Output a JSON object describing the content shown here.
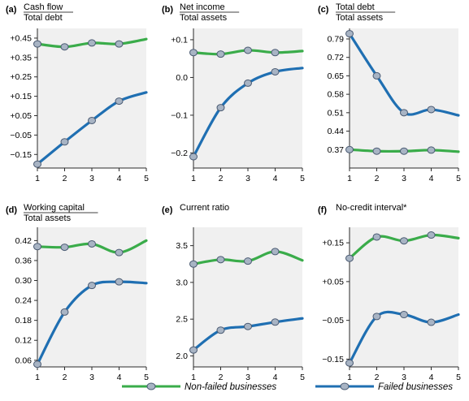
{
  "colors": {
    "non_failed": "#3aac4a",
    "failed": "#1f6fb2",
    "marker_fill": "#a8b4c4",
    "marker_stroke": "#4a5a72",
    "frame": "#2a2a2a",
    "plot_bg": "#f0f0f0"
  },
  "legend": {
    "non_failed_label": "Non-failed businesses",
    "failed_label": "Failed businesses"
  },
  "chart_data": [
    {
      "type": "line",
      "panel": "(a)",
      "title_top": "Cash flow",
      "title_bottom": "Total debt",
      "x": [
        1,
        2,
        3,
        4,
        5
      ],
      "ylim": [
        -0.22,
        0.5
      ],
      "yticks": [
        0.45,
        0.35,
        0.25,
        0.15,
        0.05,
        -0.05,
        -0.15
      ],
      "ytick_labels": [
        "+0.45",
        "+0.35",
        "+0.25",
        "+0.15",
        "+0.05",
        "−0.05",
        "−0.15"
      ],
      "series": [
        {
          "name": "Non-failed businesses",
          "key": "non_failed",
          "values": [
            0.42,
            0.405,
            0.425,
            0.42,
            0.445
          ]
        },
        {
          "name": "Failed businesses",
          "key": "failed",
          "values": [
            -0.2,
            -0.085,
            0.025,
            0.125,
            0.17
          ]
        }
      ]
    },
    {
      "type": "line",
      "panel": "(b)",
      "title_top": "Net income",
      "title_bottom": "Total assets",
      "x": [
        1,
        2,
        3,
        4,
        5
      ],
      "ylim": [
        -0.24,
        0.13
      ],
      "yticks": [
        0.1,
        0.0,
        -0.1,
        -0.2
      ],
      "ytick_labels": [
        "+0.1",
        "0.0",
        "−0.1",
        "−0.2"
      ],
      "series": [
        {
          "name": "Non-failed businesses",
          "key": "non_failed",
          "values": [
            0.066,
            0.062,
            0.072,
            0.066,
            0.07
          ]
        },
        {
          "name": "Failed businesses",
          "key": "failed",
          "values": [
            -0.21,
            -0.08,
            -0.015,
            0.015,
            0.025
          ]
        }
      ]
    },
    {
      "type": "line",
      "panel": "(c)",
      "title_top": "Total debt",
      "title_bottom": "Total assets",
      "x": [
        1,
        2,
        3,
        4,
        5
      ],
      "ylim": [
        0.3,
        0.83
      ],
      "yticks": [
        0.79,
        0.72,
        0.65,
        0.58,
        0.51,
        0.44,
        0.37
      ],
      "ytick_labels": [
        "0.79",
        "0.72",
        "0.65",
        "0.58",
        "0.51",
        "0.44",
        "0.37"
      ],
      "series": [
        {
          "name": "Non-failed businesses",
          "key": "non_failed",
          "values": [
            0.37,
            0.364,
            0.364,
            0.368,
            0.362
          ]
        },
        {
          "name": "Failed businesses",
          "key": "failed",
          "values": [
            0.81,
            0.65,
            0.51,
            0.522,
            0.5
          ]
        }
      ]
    },
    {
      "type": "line",
      "panel": "(d)",
      "title_top": "Working capital",
      "title_bottom": "Total assets",
      "x": [
        1,
        2,
        3,
        4,
        5
      ],
      "ylim": [
        0.04,
        0.46
      ],
      "yticks": [
        0.42,
        0.36,
        0.3,
        0.24,
        0.18,
        0.12,
        0.06
      ],
      "ytick_labels": [
        "0.42",
        "0.36",
        "0.30",
        "0.24",
        "0.18",
        "0.12",
        "0.06"
      ],
      "series": [
        {
          "name": "Non-failed businesses",
          "key": "non_failed",
          "values": [
            0.402,
            0.4,
            0.41,
            0.384,
            0.42
          ]
        },
        {
          "name": "Failed businesses",
          "key": "failed",
          "values": [
            0.048,
            0.205,
            0.285,
            0.296,
            0.292
          ]
        }
      ]
    },
    {
      "type": "line",
      "panel": "(e)",
      "title_top": "Current ratio",
      "title_bottom": "",
      "x": [
        1,
        2,
        3,
        4,
        5
      ],
      "ylim": [
        1.85,
        3.75
      ],
      "yticks": [
        3.5,
        3.0,
        2.5,
        2.0
      ],
      "ytick_labels": [
        "3.5",
        "3.0",
        "2.5",
        "2.0"
      ],
      "series": [
        {
          "name": "Non-failed businesses",
          "key": "non_failed",
          "values": [
            3.25,
            3.31,
            3.29,
            3.42,
            3.3
          ]
        },
        {
          "name": "Failed businesses",
          "key": "failed",
          "values": [
            2.08,
            2.35,
            2.4,
            2.46,
            2.51
          ]
        }
      ]
    },
    {
      "type": "line",
      "panel": "(f)",
      "title_top": "No-credit interval*",
      "title_bottom": "",
      "x": [
        1,
        2,
        3,
        4,
        5
      ],
      "ylim": [
        -0.17,
        0.19
      ],
      "yticks": [
        0.15,
        0.05,
        -0.05,
        -0.15
      ],
      "ytick_labels": [
        "+0.15",
        "+0.05",
        "−0.05",
        "−0.15"
      ],
      "series": [
        {
          "name": "Non-failed businesses",
          "key": "non_failed",
          "values": [
            0.11,
            0.165,
            0.155,
            0.17,
            0.162
          ]
        },
        {
          "name": "Failed businesses",
          "key": "failed",
          "values": [
            -0.16,
            -0.04,
            -0.035,
            -0.055,
            -0.035
          ]
        }
      ]
    }
  ]
}
